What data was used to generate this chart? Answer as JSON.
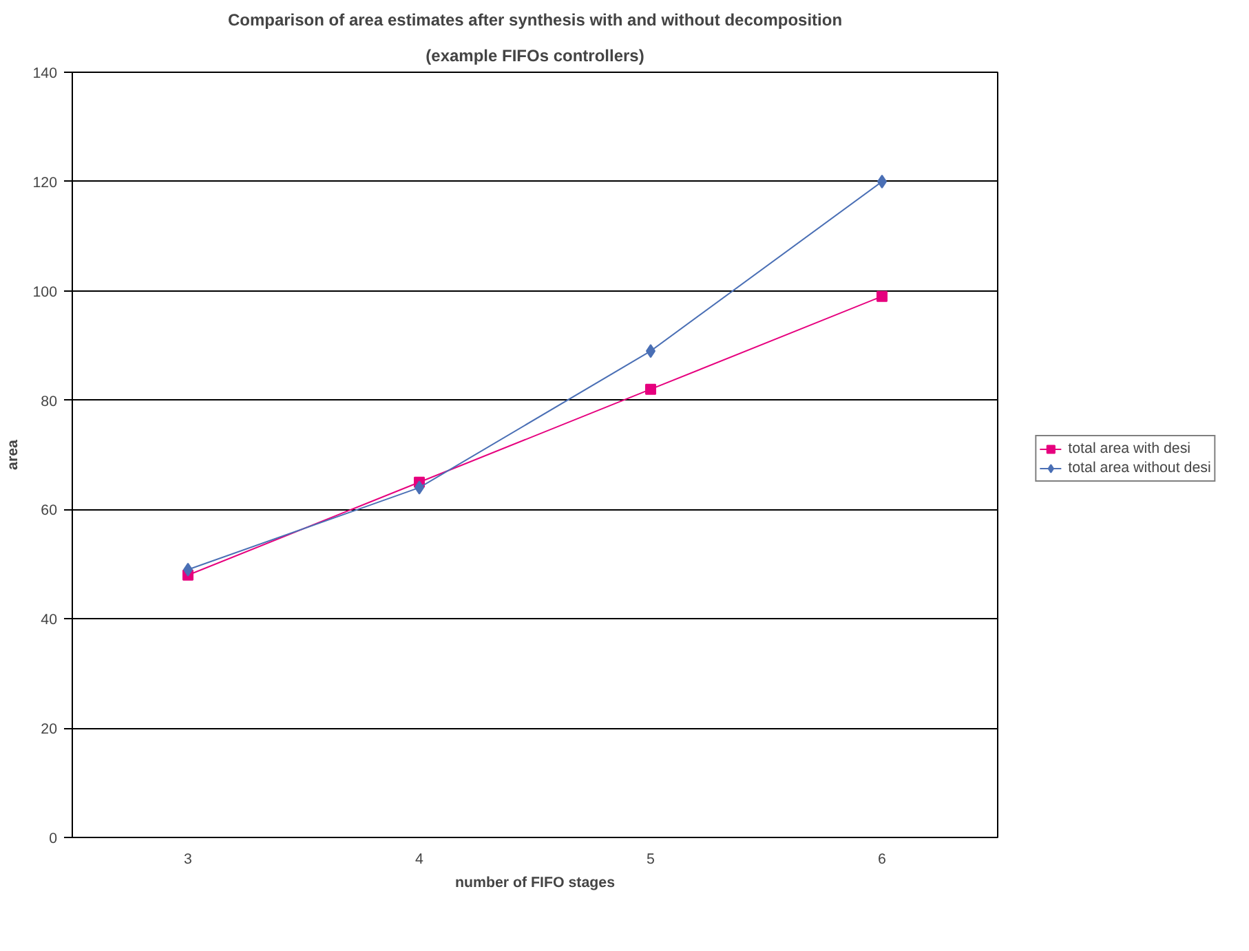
{
  "chart_data": {
    "type": "line",
    "title": "Comparison of area estimates after synthesis with and without decomposition",
    "subtitle": "(example FIFOs controllers)",
    "xlabel": "number of FIFO stages",
    "ylabel": "area",
    "categories": [
      "3",
      "4",
      "5",
      "6"
    ],
    "series": [
      {
        "name": "total area with desi",
        "color": "#e6007e",
        "marker": "square",
        "values": [
          48,
          65,
          82,
          99
        ]
      },
      {
        "name": "total area without desi",
        "color": "#4a6fb5",
        "marker": "diamond",
        "values": [
          49,
          64,
          89,
          120
        ]
      }
    ],
    "ylim": [
      0,
      140
    ],
    "yticks": [
      0,
      20,
      40,
      60,
      80,
      100,
      120,
      140
    ],
    "grid": "y",
    "legend": "right",
    "line_style": "solid"
  }
}
